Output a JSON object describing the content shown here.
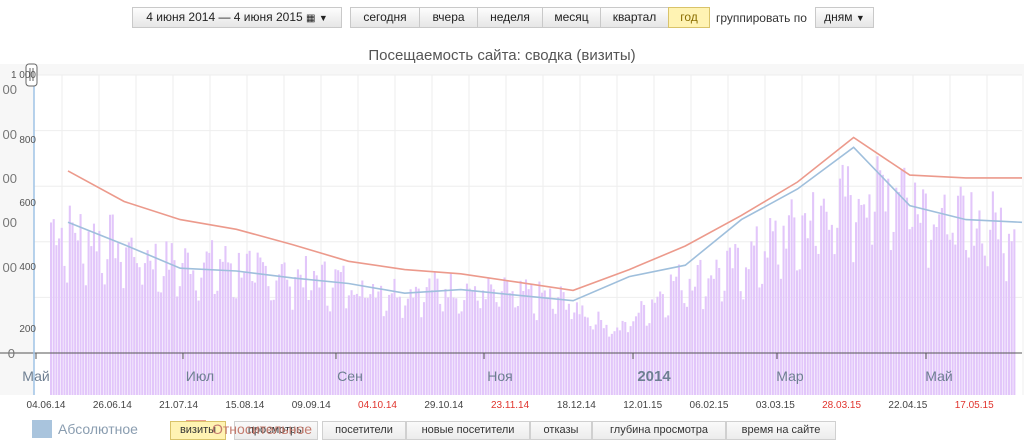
{
  "toolbar": {
    "date_range": "4 июня 2014 — 4 июня 2015",
    "periods": [
      "сегодня",
      "вчера",
      "неделя",
      "месяц",
      "квартал",
      "год"
    ],
    "active_period": "год",
    "group_label": "группировать по",
    "group_value": "дням"
  },
  "legend": {
    "absolute_label": "Абсолютное",
    "relative_label": "Относительное",
    "absolute_color": "#a9c4dd",
    "relative_color": "#ea9e8e"
  },
  "metric_tabs": [
    "визиты",
    "просмотры",
    "посетители",
    "новые посетители",
    "отказы",
    "глубина просмотра",
    "время на сайте"
  ],
  "active_metric": "визиты",
  "chart_data": {
    "type": "bar",
    "title": "Посещаемость сайта: сводка (визиты)",
    "colors": {
      "bars": "#e2c6fa",
      "absolute_line": "#9fbfdc",
      "relative_line": "#ec9a8c"
    },
    "y_inner_ticks": [
      "1 000",
      "800",
      "600",
      "400",
      "200"
    ],
    "y_outer_ticks": [
      "00",
      "00",
      "00",
      "00",
      "00",
      "0"
    ],
    "month_labels": [
      "Май",
      "Июл",
      "Сен",
      "Ноя",
      "2014",
      "Мар",
      "Май"
    ],
    "date_labels": [
      {
        "text": "04.06.14",
        "weekend": false
      },
      {
        "text": "26.06.14",
        "weekend": false
      },
      {
        "text": "21.07.14",
        "weekend": false
      },
      {
        "text": "15.08.14",
        "weekend": false
      },
      {
        "text": "09.09.14",
        "weekend": false
      },
      {
        "text": "04.10.14",
        "weekend": true
      },
      {
        "text": "29.10.14",
        "weekend": false
      },
      {
        "text": "23.11.14",
        "weekend": true
      },
      {
        "text": "18.12.14",
        "weekend": false
      },
      {
        "text": "12.01.15",
        "weekend": false
      },
      {
        "text": "06.02.15",
        "weekend": false
      },
      {
        "text": "03.03.15",
        "weekend": false
      },
      {
        "text": "28.03.15",
        "weekend": true
      },
      {
        "text": "22.04.15",
        "weekend": false
      },
      {
        "text": "17.05.15",
        "weekend": true
      }
    ],
    "ylim": [
      0,
      1000
    ],
    "grid": true,
    "monthly_values": [
      460,
      410,
      330,
      330,
      290,
      270,
      230,
      240,
      220,
      200,
      80,
      260,
      310,
      440,
      560,
      640,
      480,
      470
    ],
    "absolute_line": [
      470,
      390,
      305,
      295,
      270,
      250,
      215,
      228,
      208,
      188,
      275,
      316,
      480,
      590,
      740,
      530,
      480,
      470
    ],
    "relative_line": [
      655,
      545,
      480,
      445,
      390,
      330,
      300,
      285,
      255,
      225,
      300,
      385,
      495,
      615,
      775,
      640,
      630,
      630
    ]
  }
}
